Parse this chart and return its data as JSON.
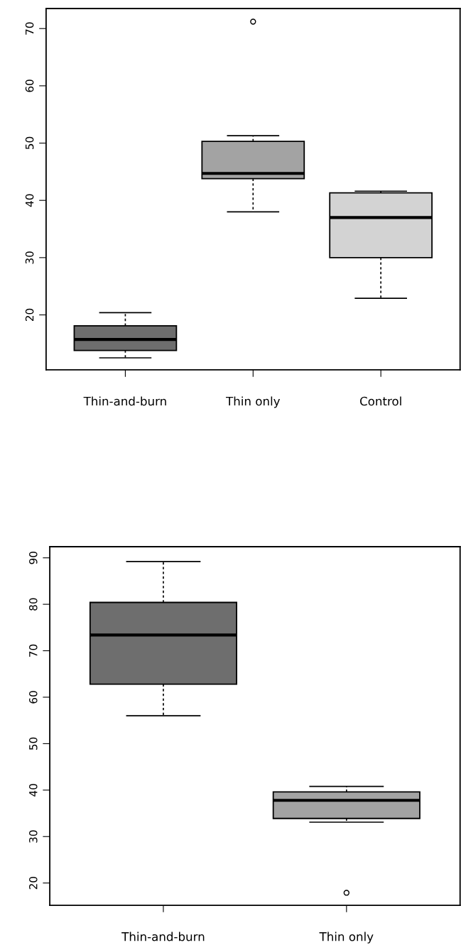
{
  "chart_data": [
    {
      "type": "box",
      "categories": [
        "Thin-and-burn",
        "Thin only",
        "Control"
      ],
      "colors": [
        "#6e6e6e",
        "#a3a3a3",
        "#d3d3d3"
      ],
      "ylim": [
        10.4,
        73.5
      ],
      "yticks": [
        20,
        30,
        40,
        50,
        60,
        70
      ],
      "grid": false,
      "boxes": [
        {
          "low": 12.5,
          "q1": 13.8,
          "median": 15.7,
          "q3": 18.1,
          "high": 20.4
        },
        {
          "low": 38.0,
          "q1": 43.8,
          "median": 44.7,
          "q3": 50.3,
          "high": 51.3,
          "outliers": [
            71.2
          ]
        },
        {
          "low": 22.9,
          "q1": 30.0,
          "median": 37.0,
          "q3": 41.3,
          "high": 41.6
        }
      ]
    },
    {
      "type": "box",
      "categories": [
        "Thin-and-burn",
        "Thin only"
      ],
      "colors": [
        "#6e6e6e",
        "#a3a3a3"
      ],
      "ylim": [
        15.2,
        92.4
      ],
      "yticks": [
        20,
        30,
        40,
        50,
        60,
        70,
        80,
        90
      ],
      "grid": false,
      "boxes": [
        {
          "low": 56.0,
          "q1": 62.8,
          "median": 73.4,
          "q3": 80.4,
          "high": 89.2
        },
        {
          "low": 33.1,
          "q1": 33.9,
          "median": 37.8,
          "q3": 39.6,
          "high": 40.8,
          "outliers": [
            17.9
          ]
        }
      ]
    }
  ]
}
